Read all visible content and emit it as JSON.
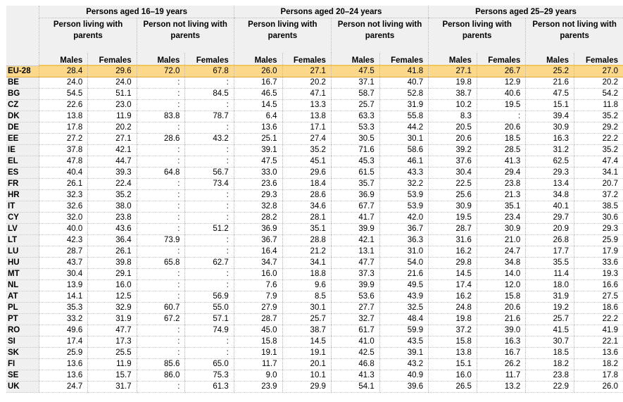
{
  "age_groups": [
    "Persons aged 16–19 years",
    "Persons aged 20–24 years",
    "Persons aged 25–29 years"
  ],
  "living": [
    "Person living with parents",
    "Person not living with parents"
  ],
  "sexes": [
    "Males",
    "Females"
  ],
  "rows": [
    {
      "country": "EU-28",
      "values": [
        "28.4",
        "29.6",
        "72.0",
        "67.8",
        "26.0",
        "27.1",
        "47.5",
        "41.8",
        "27.1",
        "26.7",
        "25.2",
        "27.0"
      ]
    },
    {
      "country": "BE",
      "values": [
        "24.0",
        "24.0",
        ":",
        ":",
        "16.7",
        "20.2",
        "37.1",
        "40.7",
        "19.8",
        "12.9",
        "21.6",
        "20.2"
      ]
    },
    {
      "country": "BG",
      "values": [
        "54.5",
        "51.1",
        ":",
        "84.5",
        "46.5",
        "47.1",
        "58.7",
        "52.8",
        "38.7",
        "40.6",
        "47.5",
        "54.2"
      ]
    },
    {
      "country": "CZ",
      "values": [
        "22.6",
        "23.0",
        ":",
        ":",
        "14.5",
        "13.3",
        "25.7",
        "31.9",
        "10.2",
        "19.5",
        "15.1",
        "11.8"
      ]
    },
    {
      "country": "DK",
      "values": [
        "13.8",
        "11.9",
        "83.8",
        "78.7",
        "6.4",
        "13.8",
        "63.3",
        "55.8",
        "8.3",
        ":",
        "39.4",
        "35.2"
      ]
    },
    {
      "country": "DE",
      "values": [
        "17.8",
        "20.2",
        ":",
        ":",
        "13.6",
        "17.1",
        "53.3",
        "44.2",
        "20.5",
        "20.6",
        "30.9",
        "29.2"
      ]
    },
    {
      "country": "EE",
      "values": [
        "27.2",
        "27.1",
        "28.6",
        "43.2",
        "25.1",
        "27.4",
        "30.5",
        "30.1",
        "20.6",
        "18.5",
        "16.3",
        "22.2"
      ]
    },
    {
      "country": "IE",
      "values": [
        "37.8",
        "42.1",
        ":",
        ":",
        "39.1",
        "35.2",
        "71.6",
        "58.6",
        "39.2",
        "28.5",
        "31.2",
        "35.2"
      ]
    },
    {
      "country": "EL",
      "values": [
        "47.8",
        "44.7",
        ":",
        ":",
        "47.5",
        "45.1",
        "45.3",
        "46.1",
        "37.6",
        "41.3",
        "62.5",
        "47.4"
      ]
    },
    {
      "country": "ES",
      "values": [
        "40.4",
        "39.3",
        "64.8",
        "56.7",
        "33.0",
        "29.6",
        "61.5",
        "43.3",
        "30.4",
        "29.4",
        "29.3",
        "34.1"
      ]
    },
    {
      "country": "FR",
      "values": [
        "26.1",
        "22.4",
        ":",
        "73.4",
        "23.6",
        "18.4",
        "35.7",
        "32.2",
        "22.5",
        "23.8",
        "13.4",
        "20.7"
      ]
    },
    {
      "country": "HR",
      "values": [
        "32.3",
        "35.2",
        ":",
        ":",
        "29.3",
        "28.6",
        "36.9",
        "53.9",
        "25.6",
        "21.3",
        "34.8",
        "37.2"
      ]
    },
    {
      "country": "IT",
      "values": [
        "32.6",
        "38.0",
        ":",
        ":",
        "32.8",
        "34.6",
        "67.7",
        "53.9",
        "30.9",
        "35.1",
        "40.1",
        "38.5"
      ]
    },
    {
      "country": "CY",
      "values": [
        "32.0",
        "23.8",
        ":",
        ":",
        "28.2",
        "28.1",
        "41.7",
        "42.0",
        "19.5",
        "23.4",
        "29.7",
        "30.6"
      ]
    },
    {
      "country": "LV",
      "values": [
        "40.0",
        "43.6",
        ":",
        "51.2",
        "36.9",
        "35.1",
        "39.9",
        "36.7",
        "28.7",
        "30.9",
        "20.9",
        "29.3"
      ]
    },
    {
      "country": "LT",
      "values": [
        "42.3",
        "36.4",
        "73.9",
        ":",
        "36.7",
        "28.8",
        "42.1",
        "36.3",
        "31.6",
        "21.0",
        "26.8",
        "25.9"
      ]
    },
    {
      "country": "LU",
      "values": [
        "28.7",
        "26.1",
        ":",
        ":",
        "16.4",
        "21.2",
        "13.1",
        "31.0",
        "16.2",
        "24.7",
        "17.7",
        "17.9"
      ]
    },
    {
      "country": "HU",
      "values": [
        "43.7",
        "39.8",
        "65.8",
        "62.7",
        "34.7",
        "34.1",
        "47.7",
        "54.0",
        "29.8",
        "34.8",
        "35.5",
        "33.6"
      ]
    },
    {
      "country": "MT",
      "values": [
        "30.4",
        "29.1",
        ":",
        ":",
        "16.0",
        "18.8",
        "37.3",
        "21.6",
        "14.5",
        "14.0",
        "11.4",
        "19.3"
      ]
    },
    {
      "country": "NL",
      "values": [
        "13.9",
        "16.0",
        ":",
        ":",
        "7.6",
        "9.6",
        "39.9",
        "49.5",
        "17.4",
        "12.0",
        "18.0",
        "16.6"
      ]
    },
    {
      "country": "AT",
      "values": [
        "14.1",
        "12.5",
        ":",
        "56.9",
        "7.9",
        "8.5",
        "53.6",
        "43.9",
        "16.2",
        "15.8",
        "31.9",
        "27.5"
      ]
    },
    {
      "country": "PL",
      "values": [
        "35.3",
        "32.9",
        "60.7",
        "55.0",
        "27.9",
        "30.1",
        "27.7",
        "32.5",
        "24.8",
        "20.6",
        "19.2",
        "18.6"
      ]
    },
    {
      "country": "PT",
      "values": [
        "33.2",
        "31.9",
        "67.2",
        "57.1",
        "28.7",
        "25.7",
        "32.7",
        "48.4",
        "19.8",
        "21.6",
        "25.7",
        "22.2"
      ]
    },
    {
      "country": "RO",
      "values": [
        "49.6",
        "47.7",
        ":",
        "74.9",
        "45.0",
        "38.7",
        "61.7",
        "59.9",
        "37.2",
        "39.0",
        "41.5",
        "41.9"
      ]
    },
    {
      "country": "SI",
      "values": [
        "17.4",
        "17.3",
        ":",
        ":",
        "15.8",
        "14.5",
        "41.0",
        "43.5",
        "15.8",
        "16.3",
        "30.7",
        "22.1"
      ]
    },
    {
      "country": "SK",
      "values": [
        "25.9",
        "25.5",
        ":",
        ":",
        "19.1",
        "19.1",
        "42.5",
        "39.1",
        "13.8",
        "16.7",
        "18.5",
        "13.6"
      ]
    },
    {
      "country": "FI",
      "values": [
        "13.6",
        "11.9",
        "85.6",
        "65.0",
        "11.7",
        "20.1",
        "46.8",
        "43.2",
        "15.1",
        "26.2",
        "18.2",
        "18.2"
      ]
    },
    {
      "country": "SE",
      "values": [
        "13.6",
        "15.7",
        "86.0",
        "75.3",
        "9.0",
        "10.1",
        "41.3",
        "40.9",
        "16.0",
        "11.7",
        "23.8",
        "17.8"
      ]
    },
    {
      "country": "UK",
      "values": [
        "24.7",
        "31.7",
        ":",
        "61.3",
        "23.9",
        "29.9",
        "54.1",
        "39.6",
        "26.5",
        "13.2",
        "22.9",
        "26.0"
      ]
    }
  ]
}
